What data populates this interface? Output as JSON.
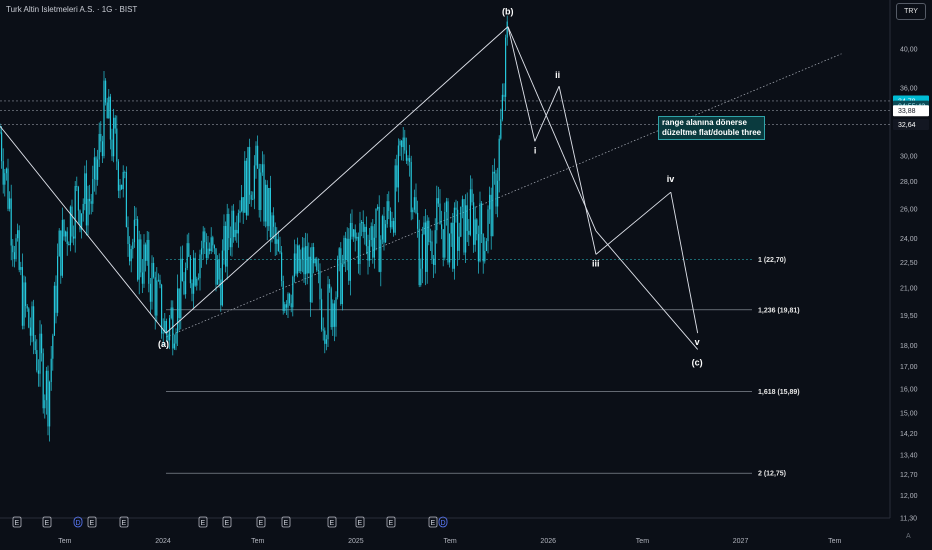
{
  "header": {
    "title": "Turk Altin Isletmeleri A.S. · 1G · BIST",
    "currency": "TRY"
  },
  "annotation": {
    "line1": "range alanına dönerse",
    "line2": "düzeltme flat/double three"
  },
  "watermark": "A",
  "colors": {
    "background": "#0b0f17",
    "candle": "#26c6da",
    "wave_line": "#e0e3eb",
    "fib_line": "#9aa0aa",
    "fib_one": "#2ec4cc",
    "price_badge_main": "#00bcd4"
  },
  "chart_data": {
    "type": "candlestick",
    "y_scale": "log",
    "ylim": [
      11.3,
      43.5
    ],
    "y_ticks": [
      "40,00",
      "36,00",
      "30,00",
      "28,00",
      "26,00",
      "24,00",
      "22,50",
      "21,00",
      "19,50",
      "18,00",
      "17,00",
      "16,00",
      "15,00",
      "14,20",
      "13,40",
      "12,70",
      "12,00",
      "11,30"
    ],
    "y_tick_values": [
      40,
      36,
      30,
      28,
      26,
      24,
      22.5,
      21,
      19.5,
      18,
      17,
      16,
      15,
      14.2,
      13.4,
      12.7,
      12,
      11.3
    ],
    "x_ticks": [
      "Tem",
      "2024",
      "Tem",
      "2025",
      "Tem",
      "2026",
      "Tem",
      "2027",
      "Tem"
    ],
    "x_tick_dates": [
      "2023-07-01",
      "2024-01-01",
      "2024-07-01",
      "2025-01-01",
      "2025-07-01",
      "2026-01-01",
      "2026-07-01",
      "2027-01-01",
      "2027-07-01"
    ],
    "x_range": [
      "2023-03-01",
      "2027-10-15"
    ],
    "price_badges": [
      {
        "label": "34,78",
        "value": 34.78,
        "style": "primary"
      },
      {
        "label": "04:55:43",
        "value": 34.3,
        "style": "timer"
      },
      {
        "label": "33,88",
        "value": 33.88,
        "style": "plain"
      },
      {
        "label": "32,64",
        "value": 32.64,
        "style": "dark"
      }
    ],
    "price_series": {
      "dates": [
        "2023-03-01",
        "2023-04-15",
        "2023-06-01",
        "2023-06-20",
        "2023-07-20",
        "2023-08-25",
        "2023-09-15",
        "2023-10-15",
        "2023-11-05",
        "2023-12-15",
        "2024-01-10",
        "2024-02-20",
        "2024-03-25",
        "2024-04-20",
        "2024-05-20",
        "2024-06-25",
        "2024-07-20",
        "2024-08-20",
        "2024-10-01",
        "2024-11-10",
        "2024-12-20",
        "2025-01-20",
        "2025-02-20",
        "2025-03-20",
        "2025-04-10",
        "2025-05-05",
        "2025-06-10",
        "2025-07-10",
        "2025-08-10",
        "2025-09-05",
        "2025-09-25",
        "2025-10-10",
        "2025-10-20"
      ],
      "close": [
        32,
        20,
        15.8,
        23,
        26.5,
        26.8,
        34,
        29,
        24,
        21.5,
        18.6,
        22,
        24,
        21.5,
        26.5,
        29,
        26,
        21,
        22.5,
        19.6,
        23,
        24.5,
        24,
        27,
        32,
        23,
        25,
        24,
        25.5,
        24.2,
        27,
        34,
        42.5
      ]
    },
    "waves": {
      "corrective": [
        {
          "label": "(a)",
          "date": "2024-01-10",
          "value": 18.6
        },
        {
          "label": "(b)",
          "date": "2025-10-20",
          "value": 42.5
        },
        {
          "label": "(c)",
          "date": "2026-10-15",
          "value": 17.8
        }
      ],
      "impulse": [
        {
          "label": "i",
          "date": "2025-12-10",
          "value": 31.2
        },
        {
          "label": "ii",
          "date": "2026-01-25",
          "value": 36.2
        },
        {
          "label": "iii",
          "date": "2026-04-05",
          "value": 23.0
        },
        {
          "label": "iv",
          "date": "2026-08-25",
          "value": 27.2
        },
        {
          "label": "v",
          "date": "2026-10-15",
          "value": 18.6
        }
      ],
      "left_start": {
        "date": "2023-03-01",
        "value": 32.5
      }
    },
    "fib_levels": [
      {
        "label": "1 (22,70)",
        "value": 22.7
      },
      {
        "label": "1,236 (19,81)",
        "value": 19.81
      },
      {
        "label": "1,618 (15,89)",
        "value": 15.89
      },
      {
        "label": "2 (12,75)",
        "value": 12.75
      }
    ],
    "trendline": {
      "from": {
        "date": "2024-01-10",
        "value": 18.4
      },
      "to": {
        "date": "2027-07-15",
        "value": 39.5
      }
    },
    "h_levels": [
      34.78,
      33.88,
      32.64
    ],
    "event_markers": [
      "E",
      "E",
      "D",
      "E",
      "E",
      "E",
      "E",
      "E",
      "E",
      "E",
      "E",
      "E",
      "E",
      "D"
    ]
  }
}
